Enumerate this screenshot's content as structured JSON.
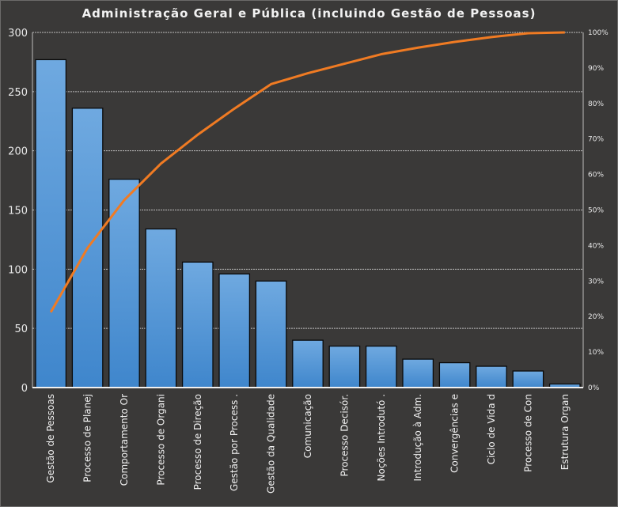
{
  "chart_data": {
    "type": "bar",
    "subtype": "pareto",
    "title": "Administração Geral e Pública (incluindo Gestão de Pessoas)",
    "categories": [
      "Gestão de Pessoas",
      "Processo de Planej",
      "Comportamento  Or",
      "Processo de Organi",
      "Processo de Direção",
      "Gestão por Process .",
      "Gestão da Qualidade",
      "Comunicação",
      "Processo Decisór.",
      "Noções Introdutó .",
      "Introdução  à Adm.",
      "Convergências e",
      "Ciclo de Vida d",
      "Processo de Con",
      "Estrutura Organ"
    ],
    "values": [
      277,
      236,
      176,
      134,
      106,
      96,
      90,
      40,
      35,
      35,
      24,
      21,
      18,
      14,
      3
    ],
    "cumulative_line": "cumulative percent of total",
    "ylim": [
      0,
      300
    ],
    "yticks": [
      "0",
      "50",
      "100",
      "150",
      "200",
      "250",
      "300"
    ],
    "y2lim": [
      0,
      100
    ],
    "y2ticks": [
      "0%",
      "10%",
      "20%",
      "30%",
      "40%",
      "50%",
      "60%",
      "70%",
      "80%",
      "90%",
      "100%"
    ],
    "grid": true,
    "colors": {
      "bar": "#4a90d4",
      "line": "#f07b23",
      "background": "#3a3938"
    }
  }
}
